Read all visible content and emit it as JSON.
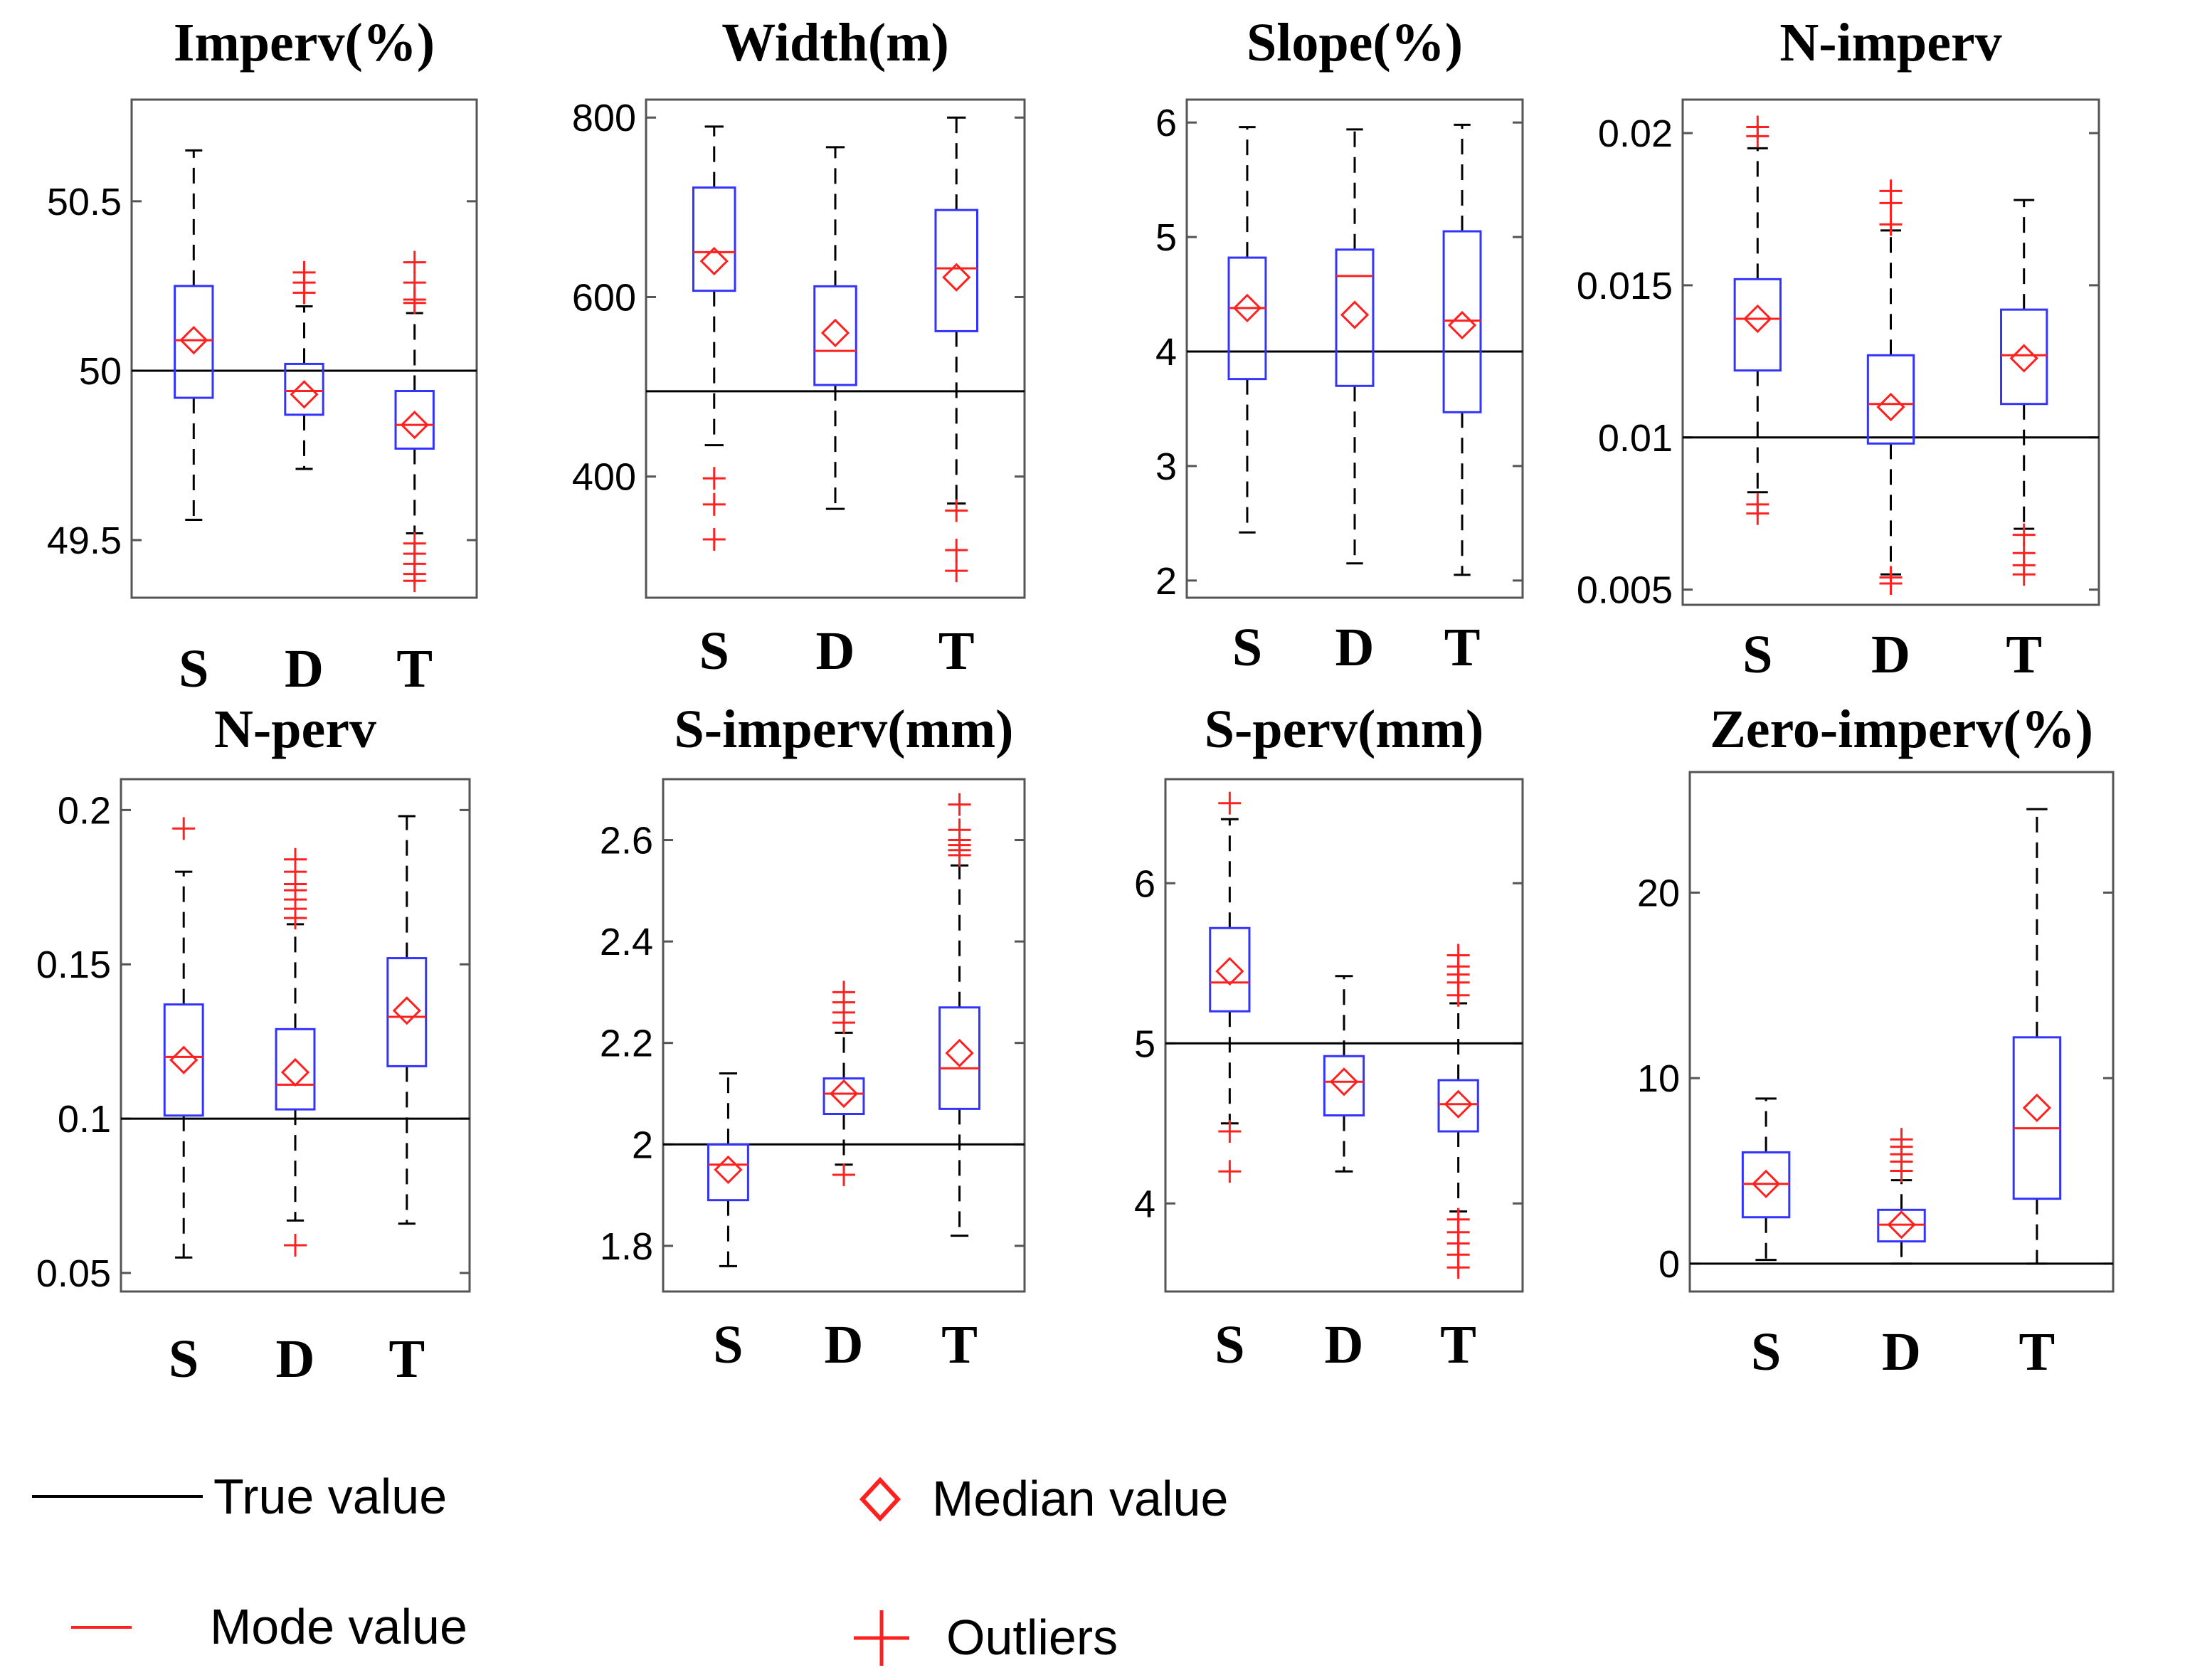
{
  "colors": {
    "box": "#3333ff",
    "mode": "#ff2020",
    "median": "#ff2020",
    "outlier": "#ff2020",
    "true_line": "#000000",
    "whisker": "#000000"
  },
  "legend": {
    "true_value": "True value",
    "mode_value": "Mode value",
    "median_value": "Median value",
    "outliers": "Outliers"
  },
  "chart_data": [
    {
      "type": "box",
      "title": "Imperv(%)",
      "categories": [
        "S",
        "D",
        "T"
      ],
      "ylim": [
        49.33,
        50.8
      ],
      "yticks": [
        49.5,
        50,
        50.5
      ],
      "ytick_labels": [
        "49.5",
        "50",
        "50.5"
      ],
      "true_value": 50,
      "boxes": [
        {
          "q1": 49.92,
          "q3": 50.25,
          "mode": 50.09,
          "median": 50.09,
          "whisker_low": 49.56,
          "whisker_high": 50.65,
          "outliers": []
        },
        {
          "q1": 49.87,
          "q3": 50.02,
          "mode": 49.94,
          "median": 49.93,
          "whisker_low": 49.71,
          "whisker_high": 50.19,
          "outliers": [
            50.23,
            50.26,
            50.29
          ]
        },
        {
          "q1": 49.77,
          "q3": 49.94,
          "mode": 49.84,
          "median": 49.84,
          "whisker_low": 49.52,
          "whisker_high": 50.17,
          "outliers": [
            50.2,
            50.21,
            50.26,
            50.32,
            49.49,
            49.46,
            49.43,
            49.4,
            49.38
          ]
        }
      ]
    },
    {
      "type": "box",
      "title": "Width(m)",
      "categories": [
        "S",
        "D",
        "T"
      ],
      "ylim": [
        265,
        820
      ],
      "yticks": [
        400,
        600,
        800
      ],
      "ytick_labels": [
        "400",
        "600",
        "800"
      ],
      "true_value": 495,
      "boxes": [
        {
          "q1": 607,
          "q3": 722,
          "mode": 650,
          "median": 640,
          "whisker_low": 435,
          "whisker_high": 790,
          "outliers": [
            398,
            369,
            330
          ]
        },
        {
          "q1": 502,
          "q3": 612,
          "mode": 540,
          "median": 560,
          "whisker_low": 364,
          "whisker_high": 767,
          "outliers": []
        },
        {
          "q1": 562,
          "q3": 697,
          "mode": 632,
          "median": 622,
          "whisker_low": 370,
          "whisker_high": 800,
          "outliers": [
            362,
            318,
            295
          ]
        }
      ]
    },
    {
      "type": "box",
      "title": "Slope(%)",
      "categories": [
        "S",
        "D",
        "T"
      ],
      "ylim": [
        1.85,
        6.2
      ],
      "yticks": [
        2,
        3,
        4,
        5,
        6
      ],
      "ytick_labels": [
        "2",
        "3",
        "4",
        "5",
        "6"
      ],
      "true_value": 4,
      "boxes": [
        {
          "q1": 3.76,
          "q3": 4.82,
          "mode": 4.38,
          "median": 4.38,
          "whisker_low": 2.42,
          "whisker_high": 5.96,
          "outliers": []
        },
        {
          "q1": 3.7,
          "q3": 4.89,
          "mode": 4.66,
          "median": 4.32,
          "whisker_low": 2.15,
          "whisker_high": 5.94,
          "outliers": []
        },
        {
          "q1": 3.47,
          "q3": 5.05,
          "mode": 4.27,
          "median": 4.23,
          "whisker_low": 2.05,
          "whisker_high": 5.98,
          "outliers": []
        }
      ]
    },
    {
      "type": "box",
      "title": "N-imperv",
      "categories": [
        "S",
        "D",
        "T"
      ],
      "ylim": [
        0.0045,
        0.0211
      ],
      "yticks": [
        0.005,
        0.01,
        0.015,
        0.02
      ],
      "ytick_labels": [
        "0.005",
        "0.01",
        "0.015",
        "0.02"
      ],
      "true_value": 0.01,
      "boxes": [
        {
          "q1": 0.0122,
          "q3": 0.0152,
          "mode": 0.0139,
          "median": 0.0139,
          "whisker_low": 0.0082,
          "whisker_high": 0.0195,
          "outliers": [
            0.0199,
            0.0202,
            0.0078,
            0.0075
          ]
        },
        {
          "q1": 0.0098,
          "q3": 0.0127,
          "mode": 0.0111,
          "median": 0.011,
          "whisker_low": 0.0055,
          "whisker_high": 0.0168,
          "outliers": [
            0.017,
            0.0177,
            0.0181,
            0.0054,
            0.0052
          ]
        },
        {
          "q1": 0.0111,
          "q3": 0.0142,
          "mode": 0.0127,
          "median": 0.0126,
          "whisker_low": 0.007,
          "whisker_high": 0.0178,
          "outliers": [
            0.0068,
            0.0062,
            0.0058,
            0.0055
          ]
        }
      ]
    },
    {
      "type": "box",
      "title": "N-perv",
      "categories": [
        "S",
        "D",
        "T"
      ],
      "ylim": [
        0.044,
        0.21
      ],
      "yticks": [
        0.05,
        0.1,
        0.15,
        0.2
      ],
      "ytick_labels": [
        "0.05",
        "0.1",
        "0.15",
        "0.2"
      ],
      "true_value": 0.1,
      "boxes": [
        {
          "q1": 0.101,
          "q3": 0.137,
          "mode": 0.12,
          "median": 0.119,
          "whisker_low": 0.055,
          "whisker_high": 0.18,
          "outliers": [
            0.194
          ]
        },
        {
          "q1": 0.103,
          "q3": 0.129,
          "mode": 0.111,
          "median": 0.115,
          "whisker_low": 0.067,
          "whisker_high": 0.163,
          "outliers": [
            0.165,
            0.168,
            0.171,
            0.174,
            0.176,
            0.18,
            0.184,
            0.059
          ]
        },
        {
          "q1": 0.117,
          "q3": 0.152,
          "mode": 0.133,
          "median": 0.135,
          "whisker_low": 0.066,
          "whisker_high": 0.198,
          "outliers": []
        }
      ]
    },
    {
      "type": "box",
      "title": "S-imperv(mm)",
      "categories": [
        "S",
        "D",
        "T"
      ],
      "ylim": [
        1.71,
        2.72
      ],
      "yticks": [
        1.8,
        2,
        2.2,
        2.4,
        2.6
      ],
      "ytick_labels": [
        "1.8",
        "2",
        "2.2",
        "2.4",
        "2.6"
      ],
      "true_value": 2,
      "boxes": [
        {
          "q1": 1.89,
          "q3": 2.0,
          "mode": 1.96,
          "median": 1.95,
          "whisker_low": 1.76,
          "whisker_high": 2.14,
          "outliers": []
        },
        {
          "q1": 2.06,
          "q3": 2.13,
          "mode": 2.1,
          "median": 2.1,
          "whisker_low": 1.96,
          "whisker_high": 2.22,
          "outliers": [
            2.24,
            2.26,
            2.28,
            2.3,
            1.94
          ]
        },
        {
          "q1": 2.07,
          "q3": 2.27,
          "mode": 2.15,
          "median": 2.18,
          "whisker_low": 1.82,
          "whisker_high": 2.55,
          "outliers": [
            2.57,
            2.58,
            2.59,
            2.6,
            2.62,
            2.67
          ]
        }
      ]
    },
    {
      "type": "box",
      "title": "S-perv(mm)",
      "categories": [
        "S",
        "D",
        "T"
      ],
      "ylim": [
        3.45,
        6.65
      ],
      "yticks": [
        4,
        5,
        6
      ],
      "ytick_labels": [
        "4",
        "5",
        "6"
      ],
      "true_value": 5,
      "boxes": [
        {
          "q1": 5.2,
          "q3": 5.72,
          "mode": 5.38,
          "median": 5.45,
          "whisker_low": 4.5,
          "whisker_high": 6.4,
          "outliers": [
            6.5,
            4.45,
            4.2
          ]
        },
        {
          "q1": 4.55,
          "q3": 4.92,
          "mode": 4.76,
          "median": 4.76,
          "whisker_low": 4.2,
          "whisker_high": 5.42,
          "outliers": []
        },
        {
          "q1": 4.45,
          "q3": 4.77,
          "mode": 4.62,
          "median": 4.62,
          "whisker_low": 3.95,
          "whisker_high": 5.25,
          "outliers": [
            5.3,
            5.38,
            5.43,
            5.48,
            5.55,
            3.9,
            3.82,
            3.75,
            3.68,
            3.6
          ]
        }
      ]
    },
    {
      "type": "box",
      "title": "Zero-imperv(%)",
      "categories": [
        "S",
        "D",
        "T"
      ],
      "ylim": [
        -1.5,
        26.5
      ],
      "yticks": [
        0,
        10,
        20
      ],
      "ytick_labels": [
        "0",
        "10",
        "20"
      ],
      "true_value": 0,
      "boxes": [
        {
          "q1": 2.5,
          "q3": 6.0,
          "mode": 4.3,
          "median": 4.3,
          "whisker_low": 0.2,
          "whisker_high": 8.9,
          "outliers": []
        },
        {
          "q1": 1.2,
          "q3": 2.9,
          "mode": 2.1,
          "median": 2.1,
          "whisker_low": 0,
          "whisker_high": 4.5,
          "outliers": [
            5.0,
            5.5,
            5.9,
            6.3,
            6.7
          ]
        },
        {
          "q1": 3.5,
          "q3": 12.2,
          "mode": 7.3,
          "median": 8.4,
          "whisker_low": 0,
          "whisker_high": 24.5,
          "outliers": []
        }
      ]
    }
  ]
}
